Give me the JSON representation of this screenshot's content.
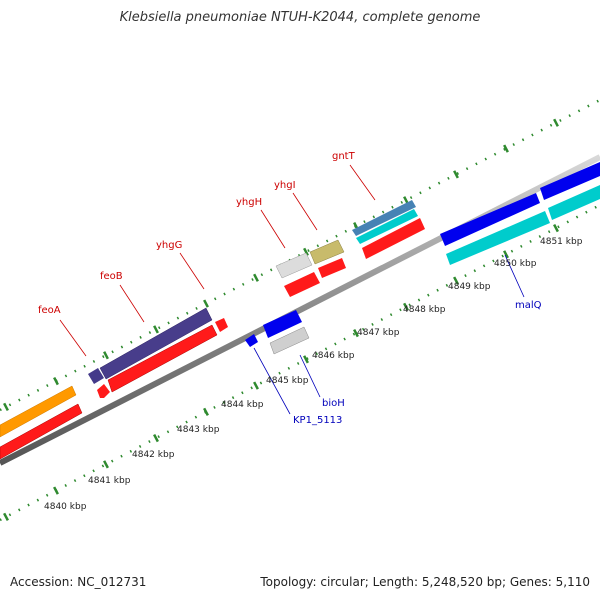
{
  "title": "Klebsiella pneumoniae NTUH-K2044, complete genome",
  "footer": {
    "accession_label": "Accession: NC_012731",
    "topology_label": "Topology: circular; Length: 5,248,520 bp; Genes: 5,110"
  },
  "colors": {
    "label_red": "#cc0000",
    "label_blue": "#0000bb",
    "backbone": "#999999",
    "tick_green": "#2f8a2f"
  },
  "kbp_labels": [
    "4840 kbp",
    "4841 kbp",
    "4842 kbp",
    "4843 kbp",
    "4844 kbp",
    "4845 kbp",
    "4846 kbp",
    "4847 kbp",
    "4848 kbp",
    "4849 kbp",
    "4850 kbp",
    "4851 kbp"
  ],
  "genes": {
    "feoA": "feoA",
    "feoB": "feoB",
    "yhgG": "yhgG",
    "yhgH": "yhgH",
    "yhgI": "yhgI",
    "gntT": "gntT",
    "bioH": "bioH",
    "KP1_5113": "KP1_5113",
    "malQ": "malQ"
  }
}
